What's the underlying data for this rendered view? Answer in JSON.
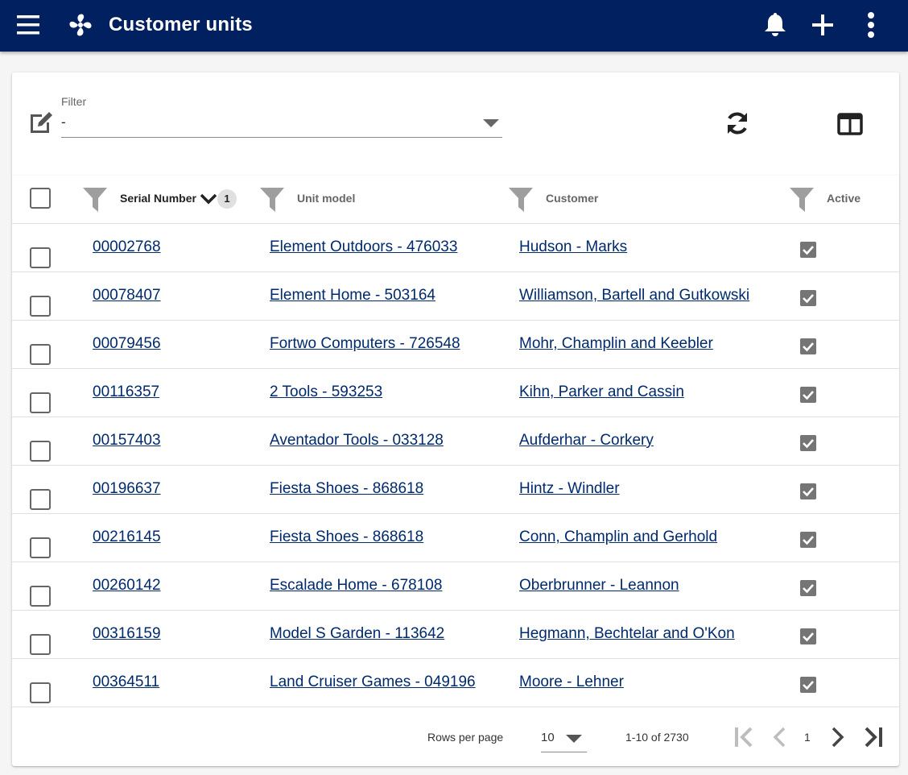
{
  "appbar": {
    "title": "Customer units"
  },
  "filter": {
    "label": "Filter",
    "value": "-"
  },
  "table": {
    "columns": {
      "serial": "Serial Number",
      "unit_model": "Unit model",
      "customer": "Customer",
      "active": "Active"
    },
    "sort_count": "1",
    "rows": [
      {
        "serial": "00002768",
        "unit_model": "Element Outdoors - 476033",
        "customer": "Hudson - Marks",
        "active": true
      },
      {
        "serial": "00078407",
        "unit_model": "Element Home - 503164",
        "customer": "Williamson, Bartell and Gutkowski",
        "active": true
      },
      {
        "serial": "00079456",
        "unit_model": "Fortwo Computers - 726548",
        "customer": "Mohr, Champlin and Keebler",
        "active": true
      },
      {
        "serial": "00116357",
        "unit_model": "2 Tools - 593253",
        "customer": "Kihn, Parker and Cassin",
        "active": true
      },
      {
        "serial": "00157403",
        "unit_model": "Aventador Tools - 033128",
        "customer": "Aufderhar - Corkery",
        "active": true
      },
      {
        "serial": "00196637",
        "unit_model": "Fiesta Shoes - 868618",
        "customer": "Hintz - Windler",
        "active": true
      },
      {
        "serial": "00216145",
        "unit_model": "Fiesta Shoes - 868618",
        "customer": "Conn, Champlin and Gerhold",
        "active": true
      },
      {
        "serial": "00260142",
        "unit_model": "Escalade Home - 678108",
        "customer": "Oberbrunner - Leannon",
        "active": true
      },
      {
        "serial": "00316159",
        "unit_model": "Model S Garden - 113642",
        "customer": "Hegmann, Bechtelar and O'Kon",
        "active": true
      },
      {
        "serial": "00364511",
        "unit_model": "Land Cruiser Games - 049196",
        "customer": "Moore - Lehner",
        "active": true
      }
    ]
  },
  "pagination": {
    "rows_per_page_label": "Rows per page",
    "rows_per_page": "10",
    "range": "1-10 of 2730",
    "page": "1"
  },
  "icons": {
    "menu": "menu-icon",
    "logo": "fan-logo-icon",
    "bell": "bell-icon",
    "add": "plus-icon",
    "more": "more-vert-icon",
    "edit": "edit-icon",
    "refresh": "refresh-icon",
    "columns": "columns-icon",
    "filter": "funnel-icon",
    "first": "first-page-icon",
    "prev": "chevron-left-icon",
    "next": "chevron-right-icon",
    "last": "last-page-icon"
  },
  "colors": {
    "appbar": "#002060",
    "link": "#002a6c"
  }
}
